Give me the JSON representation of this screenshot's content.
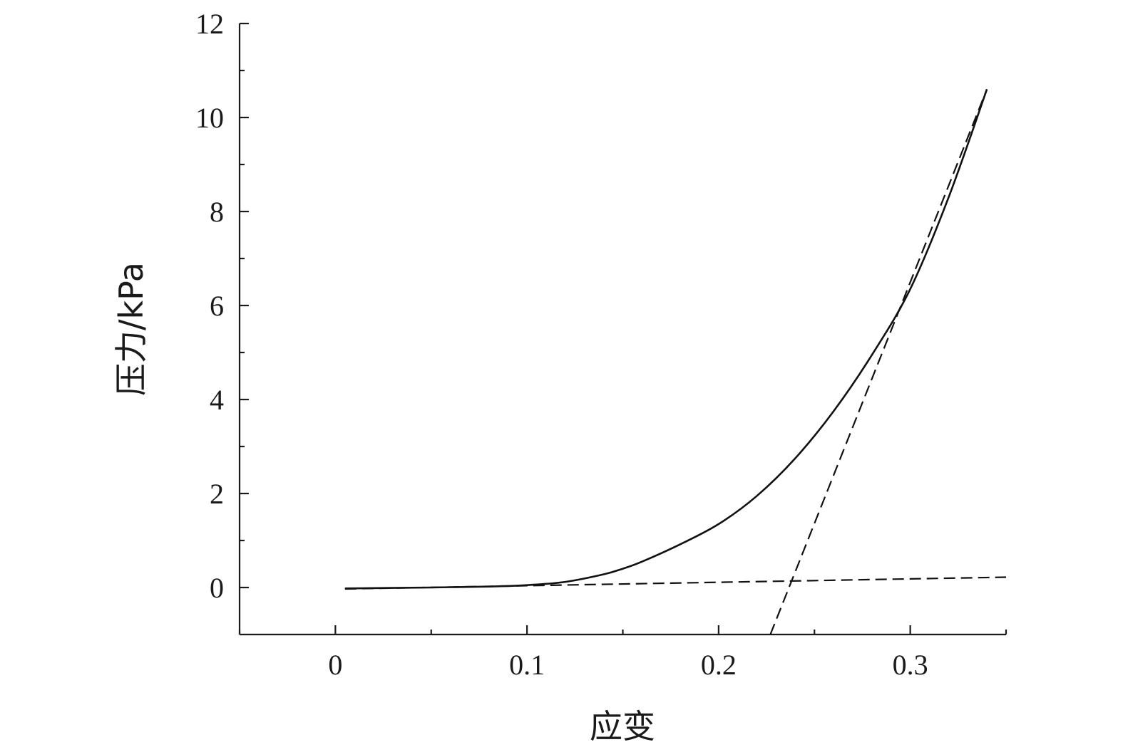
{
  "chart_data": {
    "type": "line",
    "title": "",
    "xlabel": "应变",
    "ylabel": "压力/kPa",
    "xlim": [
      -0.05,
      0.35
    ],
    "ylim": [
      -1,
      12
    ],
    "x_ticks": [
      0,
      0.1,
      0.2,
      0.3
    ],
    "x_tick_labels": [
      "0",
      "0.1",
      "0.2",
      "0.3"
    ],
    "x_minor_ticks": [
      -0.05,
      0.05,
      0.15,
      0.25,
      0.35
    ],
    "y_ticks": [
      0,
      2,
      4,
      6,
      8,
      10,
      12
    ],
    "y_tick_labels": [
      "0",
      "2",
      "4",
      "6",
      "8",
      "10",
      "12"
    ],
    "y_minor_ticks": [
      1,
      3,
      5,
      7,
      9,
      11
    ],
    "grid": false,
    "legend": "none",
    "series": [
      {
        "style": "solid",
        "x": [
          0.005,
          0.05,
          0.08,
          0.1,
          0.12,
          0.14,
          0.15,
          0.16,
          0.18,
          0.2,
          0.22,
          0.24,
          0.26,
          0.28,
          0.3,
          0.32,
          0.34
        ],
        "y": [
          -0.02,
          0.0,
          0.02,
          0.05,
          0.12,
          0.28,
          0.4,
          0.55,
          0.92,
          1.35,
          1.95,
          2.75,
          3.75,
          4.95,
          6.35,
          8.3,
          10.6
        ]
      },
      {
        "style": "dashed",
        "x": [
          0.005,
          0.35
        ],
        "y": [
          -0.03,
          0.22
        ]
      },
      {
        "style": "dashed",
        "x": [
          0.227,
          0.34
        ],
        "y": [
          -1.0,
          10.6
        ]
      }
    ]
  }
}
